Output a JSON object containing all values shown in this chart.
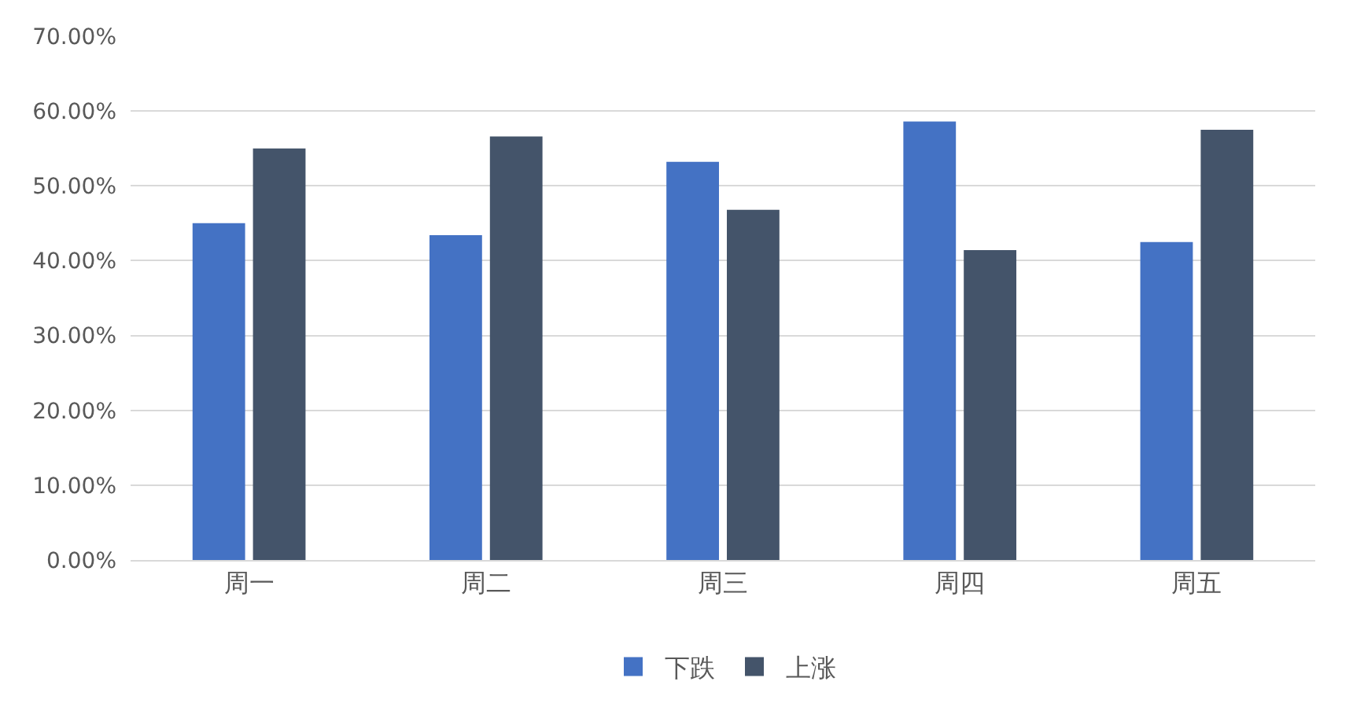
{
  "chart_data": {
    "type": "bar",
    "categories": [
      "周一",
      "周二",
      "周三",
      "周四",
      "周五"
    ],
    "series": [
      {
        "name": "下跌",
        "color": "#4472c4",
        "values": [
          45.0,
          43.4,
          53.2,
          58.6,
          42.5
        ]
      },
      {
        "name": "上涨",
        "color": "#44546a",
        "values": [
          55.0,
          56.6,
          46.8,
          41.4,
          57.5
        ]
      }
    ],
    "ylim": [
      0,
      70
    ],
    "yticks": [
      {
        "value": 0,
        "label": "0.00%"
      },
      {
        "value": 10,
        "label": "10.00%"
      },
      {
        "value": 20,
        "label": "20.00%"
      },
      {
        "value": 30,
        "label": "30.00%"
      },
      {
        "value": 40,
        "label": "40.00%"
      },
      {
        "value": 50,
        "label": "50.00%"
      },
      {
        "value": 60,
        "label": "60.00%"
      },
      {
        "value": 70,
        "label": "70.00%"
      }
    ],
    "grid": "y",
    "legend": "bottom"
  }
}
